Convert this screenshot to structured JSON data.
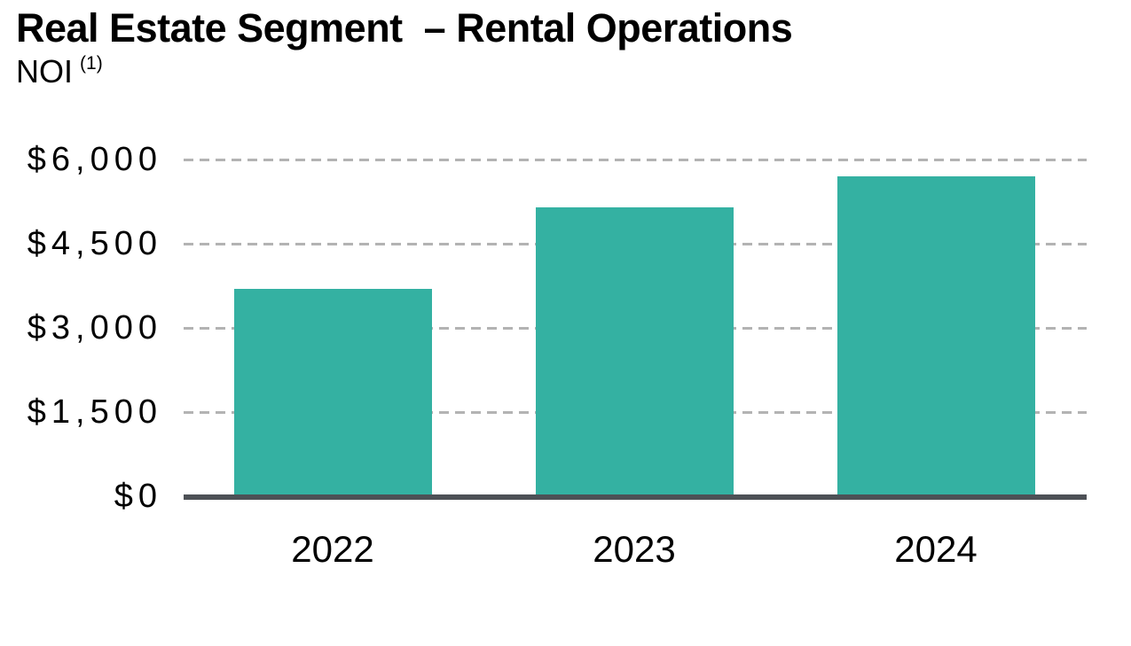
{
  "header": {
    "title": "Real Estate Segment  – Rental Operations",
    "subtitle": "NOI",
    "subtitle_footnote_marker": "(1)"
  },
  "chart_data": {
    "type": "bar",
    "title": "Real Estate Segment – Rental Operations",
    "subtitle": "NOI (1)",
    "categories": [
      "2022",
      "2023",
      "2024"
    ],
    "values": [
      3700,
      5150,
      5700
    ],
    "xlabel": "",
    "ylabel": "",
    "ylim": [
      0,
      6000
    ],
    "yticks": [
      0,
      1500,
      3000,
      4500,
      6000
    ],
    "ytick_labels": [
      "$0",
      "$1,500",
      "$3,000",
      "$4,500",
      "$6,000"
    ],
    "grid": "horizontal-dashed",
    "legend": "none",
    "colors": {
      "bar": "#34B1A2",
      "axis_line": "#4D5156",
      "gridline": "#B3B3B3",
      "text": "#000000",
      "background": "#FFFFFF"
    }
  }
}
